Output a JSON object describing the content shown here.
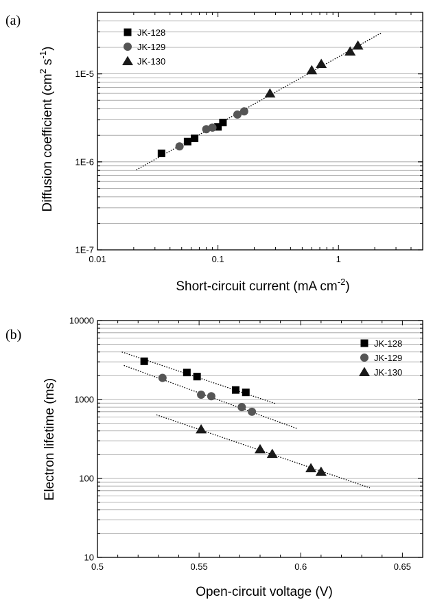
{
  "chart_data": [
    {
      "type": "scatter",
      "panel_label": "(a)",
      "xlabel": "Short-circuit current (mA cm-2)",
      "xlabel_main": "Short-circuit current (mA cm",
      "xlabel_sup": "-2",
      "xlabel_end": ")",
      "ylabel": "Diffusion coefficient (cm2 s-1)",
      "ylabel_main": "Diffusion coefficient (cm",
      "ylabel_sup1": "2",
      "ylabel_mid": " s",
      "ylabel_sup2": "-1",
      "ylabel_end": ")",
      "x_scale": "log",
      "y_scale": "log",
      "xlim": [
        0.01,
        5
      ],
      "ylim": [
        1e-07,
        5e-05
      ],
      "x_ticks": [
        0.01,
        0.1,
        1
      ],
      "x_tick_labels": [
        "0.01",
        "0.1",
        "1"
      ],
      "y_ticks": [
        1e-07,
        1e-06,
        1e-05
      ],
      "y_tick_labels": [
        "1E-7",
        "1E-6",
        "1E-5"
      ],
      "grid": "horizontal minor",
      "legend_position": "top-left",
      "series": [
        {
          "name": "JK-128",
          "marker": "square",
          "color": "#000000",
          "points": [
            [
              0.034,
              1.25e-06
            ],
            [
              0.056,
              1.7e-06
            ],
            [
              0.064,
              1.85e-06
            ],
            [
              0.1,
              2.5e-06
            ],
            [
              0.11,
              2.8e-06
            ]
          ]
        },
        {
          "name": "JK-129",
          "marker": "circle",
          "color": "#555555",
          "points": [
            [
              0.048,
              1.5e-06
            ],
            [
              0.08,
              2.35e-06
            ],
            [
              0.09,
              2.45e-06
            ],
            [
              0.145,
              3.45e-06
            ],
            [
              0.165,
              3.75e-06
            ]
          ]
        },
        {
          "name": "JK-130",
          "marker": "triangle",
          "color": "#1a1a1a",
          "points": [
            [
              0.27,
              6e-06
            ],
            [
              0.6,
              1.1e-05
            ],
            [
              0.72,
              1.3e-05
            ],
            [
              1.25,
              1.8e-05
            ],
            [
              1.45,
              2.1e-05
            ]
          ]
        }
      ],
      "fit_lines": [
        {
          "from": [
            0.021,
            8.1e-07
          ],
          "to": [
            2.3,
            2.95e-05
          ]
        }
      ]
    },
    {
      "type": "scatter",
      "panel_label": "(b)",
      "xlabel": "Open-circuit voltage (V)",
      "ylabel": "Electron lifetime (ms)",
      "x_scale": "linear",
      "y_scale": "log",
      "xlim": [
        0.5,
        0.66
      ],
      "ylim": [
        10,
        10000
      ],
      "x_ticks": [
        0.5,
        0.55,
        0.6,
        0.65
      ],
      "x_tick_labels": [
        "0.5",
        "0.55",
        "0.6",
        "0.65"
      ],
      "y_ticks": [
        10,
        100,
        1000,
        10000
      ],
      "y_tick_labels": [
        "10",
        "100",
        "1000",
        "10000"
      ],
      "grid": "horizontal minor",
      "legend_position": "top-right",
      "series": [
        {
          "name": "JK-128",
          "marker": "square",
          "color": "#000000",
          "points": [
            [
              0.523,
              3050
            ],
            [
              0.544,
              2200
            ],
            [
              0.549,
              1950
            ],
            [
              0.568,
              1320
            ],
            [
              0.573,
              1230
            ]
          ]
        },
        {
          "name": "JK-129",
          "marker": "circle",
          "color": "#555555",
          "points": [
            [
              0.532,
              1880
            ],
            [
              0.551,
              1150
            ],
            [
              0.556,
              1100
            ],
            [
              0.571,
              800
            ],
            [
              0.576,
              700
            ]
          ]
        },
        {
          "name": "JK-130",
          "marker": "triangle",
          "color": "#1a1a1a",
          "points": [
            [
              0.551,
              420
            ],
            [
              0.58,
              235
            ],
            [
              0.586,
              205
            ],
            [
              0.605,
              135
            ],
            [
              0.61,
              122
            ]
          ]
        }
      ],
      "fit_lines": [
        {
          "from": [
            0.512,
            4000
          ],
          "to": [
            0.588,
            880
          ]
        },
        {
          "from": [
            0.513,
            2700
          ],
          "to": [
            0.598,
            430
          ]
        },
        {
          "from": [
            0.529,
            640
          ],
          "to": [
            0.634,
            76
          ]
        }
      ]
    }
  ]
}
